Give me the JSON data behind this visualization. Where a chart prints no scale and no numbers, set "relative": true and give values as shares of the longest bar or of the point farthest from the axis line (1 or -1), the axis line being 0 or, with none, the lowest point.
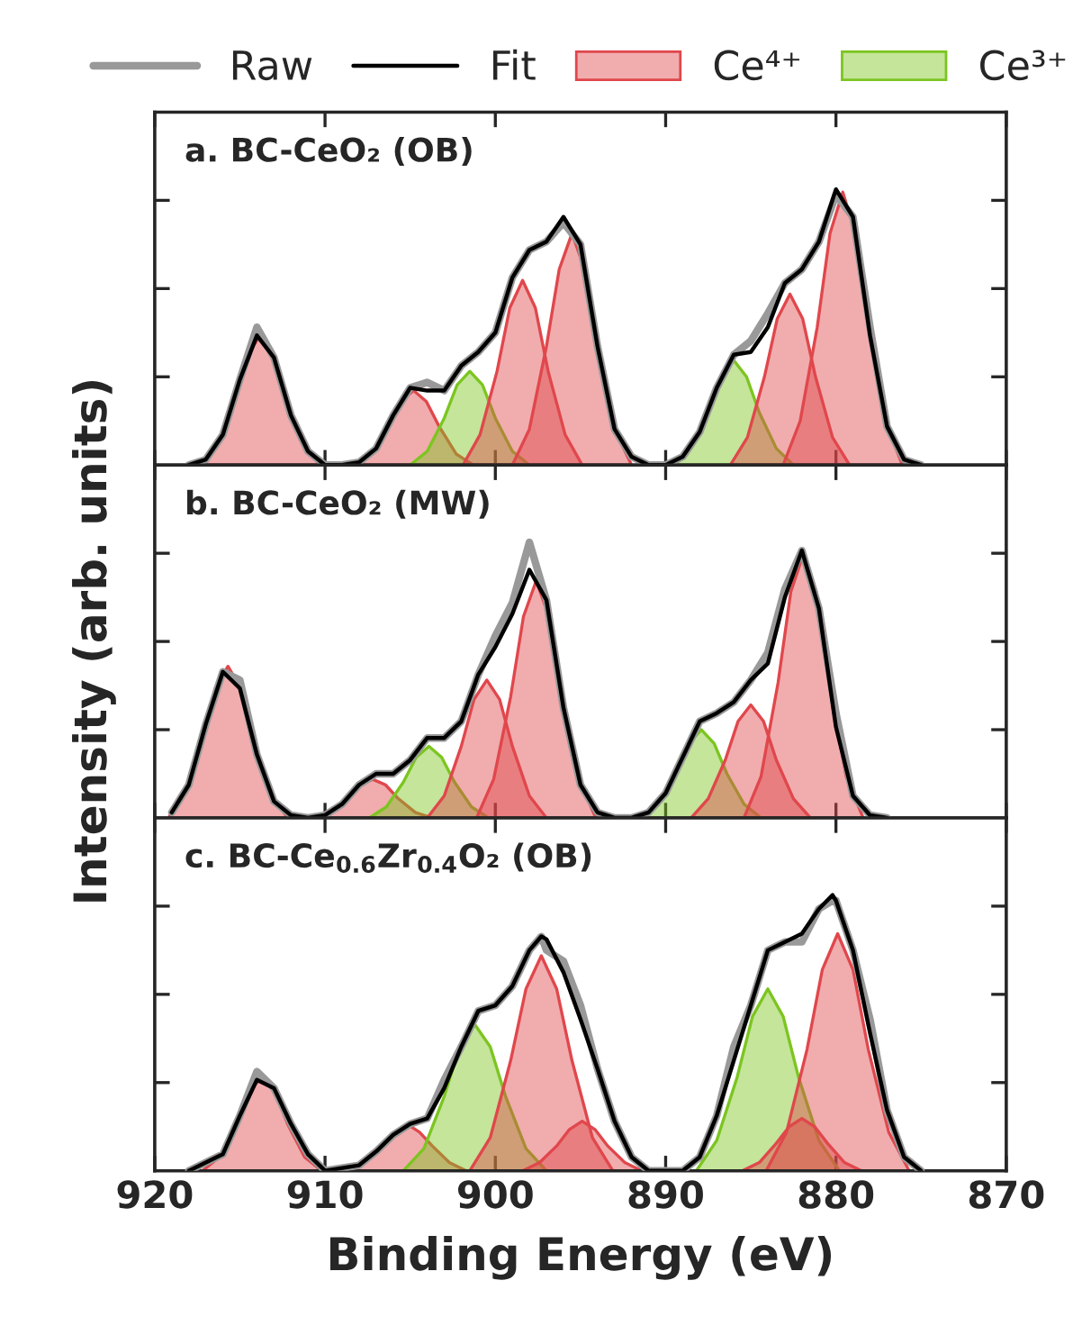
{
  "chart_data": [
    {
      "type": "line",
      "title": "a. BC-CeO₂ (OB)",
      "xlim": [
        920,
        870
      ],
      "xticks": [
        920,
        910,
        900,
        890,
        880,
        870
      ],
      "tick_labels": false,
      "relative": true,
      "legend": "top",
      "series": [
        {
          "name": "Raw",
          "type": "line",
          "color": "#999999",
          "x": [
            918,
            917,
            916,
            915,
            914,
            913,
            912,
            911,
            910,
            909,
            908,
            907,
            906,
            905,
            904,
            903,
            902,
            901,
            900,
            899,
            898,
            897,
            896,
            895,
            894,
            893,
            892,
            891,
            890,
            889,
            888,
            887,
            886,
            885,
            884,
            883,
            882,
            881,
            880,
            879,
            878,
            877,
            876,
            875
          ],
          "values": [
            0,
            0.02,
            0.11,
            0.31,
            0.5,
            0.39,
            0.18,
            0.05,
            0,
            0,
            0.01,
            0.06,
            0.18,
            0.28,
            0.3,
            0.27,
            0.36,
            0.41,
            0.48,
            0.68,
            0.78,
            0.81,
            0.88,
            0.8,
            0.43,
            0.13,
            0.03,
            0,
            0,
            0.03,
            0.12,
            0.28,
            0.4,
            0.45,
            0.55,
            0.66,
            0.71,
            0.81,
            0.98,
            0.9,
            0.5,
            0.14,
            0.02,
            0
          ]
        },
        {
          "name": "Fit",
          "type": "line",
          "color": "#000000",
          "x": [
            918,
            917,
            916,
            915,
            914,
            913,
            912,
            911,
            910,
            909,
            908,
            907,
            906,
            905,
            904,
            903,
            902,
            901,
            900,
            899,
            898,
            897,
            896,
            895,
            894,
            893,
            892,
            891,
            890,
            889,
            888,
            887,
            886,
            885,
            884,
            883,
            882,
            881,
            880,
            879,
            878,
            877,
            876,
            875
          ],
          "values": [
            0,
            0.02,
            0.11,
            0.31,
            0.47,
            0.39,
            0.18,
            0.05,
            0,
            0,
            0.01,
            0.06,
            0.18,
            0.28,
            0.27,
            0.27,
            0.36,
            0.41,
            0.48,
            0.68,
            0.78,
            0.81,
            0.9,
            0.8,
            0.43,
            0.13,
            0.03,
            0,
            0,
            0.03,
            0.12,
            0.28,
            0.4,
            0.41,
            0.5,
            0.66,
            0.71,
            0.81,
            1,
            0.9,
            0.47,
            0.14,
            0.02,
            0
          ]
        },
        {
          "name": "Ce⁴⁺",
          "type": "area",
          "color": "#e0474c",
          "x": [
            917.3,
            916.3,
            915.3,
            914.55,
            913.8,
            913.05,
            912.3,
            911.3,
            910.3
          ],
          "values": [
            0,
            0.08,
            0.24,
            0.4,
            0.47,
            0.4,
            0.24,
            0.08,
            0
          ]
        },
        {
          "type": "area",
          "color": "#e0474c",
          "x": [
            908.3,
            907.3,
            906.3,
            905.55,
            904.8,
            904.05,
            903.3,
            902.3,
            901.3
          ],
          "values": [
            0,
            0.04,
            0.14,
            0.23,
            0.27,
            0.23,
            0.14,
            0.04,
            0
          ]
        },
        {
          "name": "Ce³⁺",
          "type": "area",
          "color": "#7cc520",
          "x": [
            905,
            904,
            903,
            902.25,
            901.5,
            900.75,
            900,
            899,
            898
          ],
          "values": [
            0,
            0.05,
            0.17,
            0.29,
            0.34,
            0.29,
            0.17,
            0.05,
            0
          ]
        },
        {
          "type": "area",
          "color": "#e0474c",
          "x": [
            901.9,
            900.9,
            899.9,
            899.15,
            898.4,
            897.65,
            896.9,
            895.9,
            894.9
          ],
          "values": [
            0,
            0.11,
            0.34,
            0.57,
            0.67,
            0.57,
            0.34,
            0.11,
            0
          ]
        },
        {
          "type": "area",
          "color": "#e0474c",
          "x": [
            899,
            898,
            897,
            896.25,
            895.5,
            894.75,
            894,
            893,
            892
          ],
          "values": [
            0,
            0.13,
            0.43,
            0.71,
            0.84,
            0.71,
            0.43,
            0.13,
            0
          ]
        },
        {
          "type": "area",
          "color": "#7cc520",
          "x": [
            889.5,
            888.5,
            887.5,
            886.75,
            886,
            885.25,
            884.5,
            883.5,
            882.5
          ],
          "values": [
            0,
            0.06,
            0.19,
            0.32,
            0.38,
            0.32,
            0.19,
            0.06,
            0
          ]
        },
        {
          "type": "area",
          "color": "#e0474c",
          "x": [
            886.2,
            885.2,
            884.2,
            883.45,
            882.7,
            881.95,
            881.2,
            880.2,
            879.2
          ],
          "values": [
            0,
            0.1,
            0.32,
            0.53,
            0.62,
            0.53,
            0.32,
            0.1,
            0
          ]
        },
        {
          "type": "area",
          "color": "#e0474c",
          "x": [
            883.1,
            882.1,
            881.1,
            880.35,
            879.6,
            878.85,
            878.1,
            877.1,
            876.1
          ],
          "values": [
            0,
            0.16,
            0.5,
            0.84,
            0.99,
            0.84,
            0.5,
            0.16,
            0
          ]
        }
      ]
    },
    {
      "type": "line",
      "title": "b. BC-CeO₂ (MW)",
      "ylabel": "Intensity (arb. units)",
      "xlim": [
        920,
        870
      ],
      "xticks": [
        920,
        910,
        900,
        890,
        880,
        870
      ],
      "tick_labels": false,
      "relative": true,
      "series": [
        {
          "type": "line",
          "color": "#999999",
          "x": [
            919,
            918,
            917,
            916,
            915,
            914,
            913,
            912,
            911,
            910,
            909,
            908,
            907,
            906,
            905,
            904,
            903,
            902,
            901,
            900,
            899,
            898,
            897,
            896,
            895,
            894,
            893,
            892,
            891,
            890,
            889,
            888,
            887,
            886,
            885,
            884,
            883,
            882,
            881,
            880,
            879,
            878,
            877
          ],
          "values": [
            0.02,
            0.12,
            0.34,
            0.53,
            0.5,
            0.23,
            0.06,
            0.01,
            0,
            0.01,
            0.05,
            0.12,
            0.16,
            0.16,
            0.21,
            0.29,
            0.29,
            0.35,
            0.52,
            0.66,
            0.78,
            1,
            0.79,
            0.4,
            0.12,
            0.02,
            0,
            0,
            0.02,
            0.09,
            0.22,
            0.35,
            0.38,
            0.42,
            0.5,
            0.6,
            0.83,
            0.97,
            0.76,
            0.38,
            0.08,
            0.01,
            0
          ]
        },
        {
          "type": "line",
          "color": "#000000",
          "x": [
            919,
            918,
            917,
            916,
            915,
            914,
            913,
            912,
            911,
            910,
            909,
            908,
            907,
            906,
            905,
            904,
            903,
            902,
            901,
            900,
            899,
            898,
            897,
            896,
            895,
            894,
            893,
            892,
            891,
            890,
            889,
            888,
            887,
            886,
            885,
            884,
            883,
            882,
            881,
            880,
            879,
            878,
            877
          ],
          "values": [
            0.02,
            0.12,
            0.34,
            0.53,
            0.47,
            0.23,
            0.06,
            0.01,
            0,
            0.01,
            0.05,
            0.12,
            0.16,
            0.16,
            0.21,
            0.29,
            0.29,
            0.35,
            0.52,
            0.62,
            0.74,
            0.9,
            0.79,
            0.4,
            0.12,
            0.02,
            0,
            0,
            0.02,
            0.09,
            0.22,
            0.35,
            0.38,
            0.42,
            0.5,
            0.56,
            0.8,
            0.97,
            0.76,
            0.33,
            0.08,
            0.01,
            0
          ]
        },
        {
          "type": "area",
          "color": "#e0474c",
          "x": [
            919.2,
            918.2,
            917.2,
            916.45,
            915.7,
            914.95,
            914.2,
            913.2,
            912.2
          ],
          "values": [
            0,
            0.09,
            0.28,
            0.47,
            0.55,
            0.47,
            0.28,
            0.09,
            0
          ]
        },
        {
          "type": "area",
          "color": "#e0474c",
          "x": [
            910.7,
            909.7,
            908.7,
            907.95,
            907.2,
            906.45,
            905.7,
            904.7,
            903.7
          ],
          "values": [
            0,
            0.02,
            0.07,
            0.12,
            0.14,
            0.12,
            0.07,
            0.02,
            0
          ]
        },
        {
          "type": "area",
          "color": "#7cc520",
          "x": [
            907.4,
            906.4,
            905.4,
            904.65,
            903.9,
            903.15,
            902.4,
            901.4,
            900.4
          ],
          "values": [
            0,
            0.04,
            0.13,
            0.22,
            0.26,
            0.22,
            0.13,
            0.04,
            0
          ]
        },
        {
          "type": "area",
          "color": "#e0474c",
          "x": [
            904,
            903,
            902,
            901.25,
            900.5,
            899.75,
            899,
            898,
            897
          ],
          "values": [
            0,
            0.08,
            0.26,
            0.43,
            0.5,
            0.43,
            0.26,
            0.08,
            0
          ]
        },
        {
          "type": "area",
          "color": "#e0474c",
          "x": [
            901.1,
            900.1,
            899.1,
            898.35,
            897.6,
            896.85,
            896.1,
            895.1,
            894.1
          ],
          "values": [
            0,
            0.14,
            0.44,
            0.73,
            0.86,
            0.73,
            0.44,
            0.14,
            0
          ]
        },
        {
          "type": "area",
          "color": "#7cc520",
          "x": [
            891.4,
            890.4,
            889.4,
            888.65,
            887.9,
            887.15,
            886.4,
            885.4,
            884.4
          ],
          "values": [
            0,
            0.05,
            0.16,
            0.27,
            0.32,
            0.27,
            0.16,
            0.05,
            0
          ]
        },
        {
          "type": "area",
          "color": "#e0474c",
          "x": [
            888.5,
            887.5,
            886.5,
            885.75,
            885,
            884.25,
            883.5,
            882.5,
            881.5
          ],
          "values": [
            0,
            0.07,
            0.21,
            0.35,
            0.41,
            0.35,
            0.21,
            0.07,
            0
          ]
        },
        {
          "type": "area",
          "color": "#e0474c",
          "x": [
            885.4,
            884.4,
            883.4,
            882.65,
            881.9,
            881.15,
            880.4,
            879.4,
            878.4
          ],
          "values": [
            0,
            0.15,
            0.49,
            0.82,
            0.96,
            0.82,
            0.49,
            0.15,
            0
          ]
        }
      ]
    },
    {
      "type": "line",
      "title": "c. BC-Ce$_{0.6}$Zr$_{0.4}$O₂ (OB)",
      "xlabel": "Binding Energy (eV)",
      "xlim": [
        920,
        870
      ],
      "xticks": [
        920,
        910,
        900,
        890,
        880,
        870
      ],
      "tick_labels": "x",
      "relative": true,
      "series": [
        {
          "type": "line",
          "color": "#999999",
          "x": [
            918,
            916,
            915,
            914,
            913,
            912,
            911,
            910,
            908,
            907,
            906,
            905,
            904,
            903,
            902,
            901,
            900,
            899,
            898,
            897.3,
            897,
            896,
            895,
            894,
            893,
            892,
            891,
            889,
            888,
            887,
            886,
            885,
            884,
            883,
            882,
            881,
            880.2,
            880,
            879,
            878,
            877,
            876,
            875
          ],
          "values": [
            0,
            0.06,
            0.2,
            0.36,
            0.3,
            0.17,
            0.06,
            0,
            0.02,
            0.07,
            0.13,
            0.17,
            0.19,
            0.33,
            0.45,
            0.58,
            0.6,
            0.67,
            0.8,
            0.85,
            0.8,
            0.76,
            0.6,
            0.37,
            0.18,
            0.05,
            0,
            0,
            0.05,
            0.2,
            0.45,
            0.6,
            0.8,
            0.83,
            0.83,
            0.95,
            0.98,
            0.98,
            0.8,
            0.55,
            0.22,
            0.05,
            0
          ]
        },
        {
          "type": "line",
          "color": "#000000",
          "x": [
            918,
            916,
            915,
            914,
            913,
            912,
            911,
            910,
            908,
            907,
            906,
            905,
            904,
            903,
            902,
            901,
            900,
            899,
            898,
            897.3,
            897,
            896,
            895,
            894,
            893,
            892,
            891,
            889,
            888,
            887,
            886,
            885,
            884,
            883,
            882,
            881,
            880.2,
            880,
            879,
            878,
            877,
            876,
            875
          ],
          "values": [
            0,
            0.06,
            0.2,
            0.33,
            0.3,
            0.17,
            0.06,
            0,
            0.02,
            0.07,
            0.13,
            0.17,
            0.19,
            0.3,
            0.45,
            0.58,
            0.6,
            0.67,
            0.8,
            0.85,
            0.84,
            0.72,
            0.55,
            0.37,
            0.18,
            0.05,
            0,
            0,
            0.05,
            0.2,
            0.4,
            0.6,
            0.8,
            0.83,
            0.86,
            0.95,
            1,
            0.98,
            0.8,
            0.5,
            0.22,
            0.05,
            0
          ]
        },
        {
          "type": "area",
          "color": "#e0474c",
          "x": [
            917.2,
            916.2,
            915.2,
            914.45,
            913.7,
            912.95,
            912.2,
            911.2,
            910.2
          ],
          "values": [
            0,
            0.05,
            0.17,
            0.29,
            0.34,
            0.29,
            0.17,
            0.05,
            0
          ]
        },
        {
          "type": "area",
          "color": "#e0474c",
          "x": [
            908.7,
            907.7,
            906.7,
            905.95,
            905.2,
            904.45,
            903.7,
            902.7,
            901.7
          ],
          "values": [
            0,
            0.03,
            0.09,
            0.14,
            0.17,
            0.14,
            0.09,
            0.03,
            0
          ]
        },
        {
          "type": "area",
          "color": "#7cc520",
          "x": [
            905.4,
            904.2,
            903,
            902.1,
            901.2,
            900.3,
            899.4,
            898.2,
            897
          ],
          "values": [
            0,
            0.08,
            0.27,
            0.45,
            0.53,
            0.45,
            0.27,
            0.08,
            0
          ]
        },
        {
          "type": "area",
          "color": "#e0474c",
          "x": [
            901.5,
            900.3,
            899.1,
            898.2,
            897.3,
            896.4,
            895.5,
            894.3,
            893.1
          ],
          "values": [
            0,
            0.12,
            0.4,
            0.66,
            0.78,
            0.66,
            0.4,
            0.12,
            0
          ]
        },
        {
          "type": "area",
          "color": "#e0474c",
          "x": [
            898.4,
            897.4,
            896.4,
            895.65,
            894.9,
            894.15,
            893.4,
            892.4,
            891.4
          ],
          "values": [
            0,
            0.03,
            0.09,
            0.15,
            0.18,
            0.15,
            0.09,
            0.03,
            0
          ]
        },
        {
          "type": "area",
          "color": "#7cc520",
          "x": [
            888.2,
            887,
            885.8,
            884.9,
            884,
            883.1,
            882.2,
            881,
            879.8
          ],
          "values": [
            0,
            0.11,
            0.34,
            0.56,
            0.66,
            0.56,
            0.34,
            0.11,
            0
          ]
        },
        {
          "type": "area",
          "color": "#e0474c",
          "x": [
            885.5,
            884.5,
            883.5,
            882.75,
            882,
            881.25,
            880.5,
            879.5,
            878.5
          ],
          "values": [
            0,
            0.03,
            0.1,
            0.16,
            0.19,
            0.16,
            0.1,
            0.03,
            0
          ]
        },
        {
          "type": "area",
          "color": "#e0474c",
          "x": [
            884.1,
            882.9,
            881.7,
            880.8,
            879.9,
            879,
            878.1,
            876.9,
            875.7
          ],
          "values": [
            0,
            0.14,
            0.44,
            0.73,
            0.86,
            0.73,
            0.44,
            0.14,
            0
          ]
        }
      ]
    }
  ]
}
